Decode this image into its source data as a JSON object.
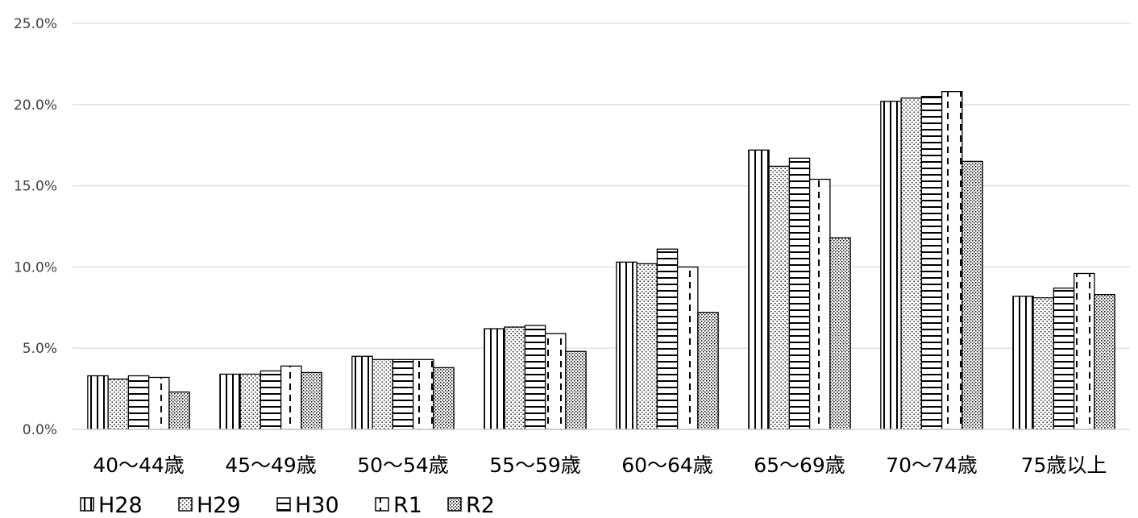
{
  "chart_data": {
    "type": "bar",
    "categories": [
      "40～44歳",
      "45～49歳",
      "50～54歳",
      "55～59歳",
      "60～64歳",
      "65～69歳",
      "70～74歳",
      "75歳以上"
    ],
    "series": [
      {
        "name": "H28",
        "pattern": "vertical",
        "values": [
          3.3,
          3.4,
          4.5,
          6.2,
          10.3,
          17.2,
          20.2,
          8.2
        ]
      },
      {
        "name": "H29",
        "pattern": "dots",
        "values": [
          3.1,
          3.4,
          4.3,
          6.3,
          10.2,
          16.2,
          20.4,
          8.1
        ]
      },
      {
        "name": "H30",
        "pattern": "horizontal",
        "values": [
          3.3,
          3.6,
          4.3,
          6.4,
          11.1,
          16.7,
          20.5,
          8.7
        ]
      },
      {
        "name": "R1",
        "pattern": "dashed-vertical",
        "values": [
          3.2,
          3.9,
          4.3,
          5.9,
          10.0,
          15.4,
          20.8,
          9.6
        ]
      },
      {
        "name": "R2",
        "pattern": "dense-dots",
        "values": [
          2.3,
          3.5,
          3.8,
          4.8,
          7.2,
          11.8,
          16.5,
          8.3
        ]
      }
    ],
    "yticks": [
      "0.0%",
      "5.0%",
      "10.0%",
      "15.0%",
      "20.0%",
      "25.0%"
    ],
    "ylim": [
      0,
      25
    ],
    "grid": true,
    "legend_position": "bottom-left",
    "title": "",
    "xlabel": "",
    "ylabel": ""
  },
  "colors": {
    "grid": "#d9d9d9",
    "bar_stroke": "#000000",
    "bar_fill": "#ffffff"
  }
}
